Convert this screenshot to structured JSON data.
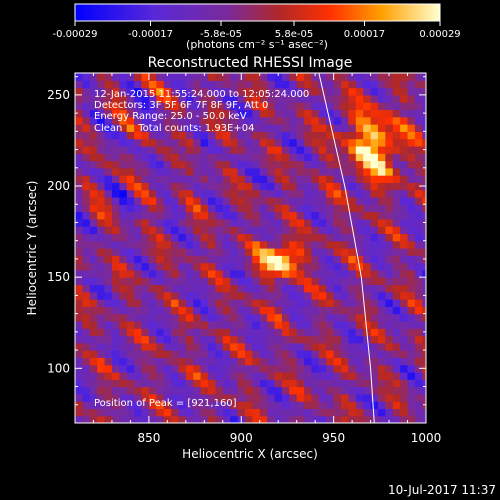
{
  "colorbar": {
    "tick_labels": [
      "-0.00029",
      "-0.00017",
      "-5.8e-05",
      "5.8e-05",
      "0.00017",
      "0.00029"
    ],
    "unit_label": "(photons cm⁻² s⁻¹ asec⁻²)"
  },
  "chart_data": {
    "type": "heatmap",
    "title": "Reconstructed RHESSI Image",
    "xlabel": "Heliocentric X (arcsec)",
    "ylabel": "Heliocentric Y (arcsec)",
    "xlim": [
      810,
      1000
    ],
    "ylim": [
      70,
      262
    ],
    "x_ticks": [
      850,
      900,
      950,
      1000
    ],
    "y_ticks": [
      100,
      150,
      200,
      250
    ],
    "value_range": [
      -0.00029,
      0.00029
    ],
    "peak": {
      "x": 921,
      "y": 160
    },
    "secondary_source": {
      "x": 972,
      "y": 222
    },
    "annotations": [
      "12-Jan-2015 11:55:24.000 to 12:05:24.000",
      "Detectors: 3F 5F 6F 7F 8F 9F, Att 0",
      "Energy Range: 25.0 - 50.0 keV",
      "Clean     Total counts: 1.93E+04"
    ],
    "peak_label": "Position of Peak = [921,160]",
    "limb_curve": [
      [
        942,
        262
      ],
      [
        956,
        200
      ],
      [
        965,
        150
      ],
      [
        970,
        100
      ],
      [
        972,
        70
      ]
    ]
  },
  "timestamp": "10-Jul-2017 11:37"
}
